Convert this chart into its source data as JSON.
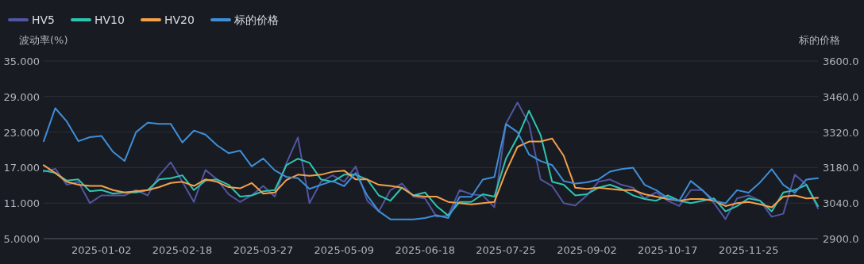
{
  "chart_data": {
    "type": "line",
    "ylabel": "波动率(%)",
    "y2label": "标的价格",
    "categories": [
      null,
      null,
      null,
      null,
      null,
      "2025-01-02",
      null,
      null,
      null,
      null,
      null,
      null,
      "2025-02-18",
      null,
      null,
      null,
      null,
      null,
      null,
      "2025-03-27",
      null,
      null,
      null,
      null,
      null,
      null,
      "2025-05-09",
      null,
      null,
      null,
      null,
      null,
      null,
      "2025-06-18",
      null,
      null,
      null,
      null,
      null,
      null,
      "2025-07-25",
      null,
      null,
      null,
      null,
      null,
      null,
      "2025-09-02",
      null,
      null,
      null,
      null,
      null,
      null,
      "2025-10-17",
      null,
      null,
      null,
      null,
      null,
      null,
      "2025-11-25",
      null,
      null,
      null,
      null,
      null,
      null
    ],
    "ylim": [
      5,
      35
    ],
    "yticks": [
      {
        "value": 5,
        "label": "5.0000"
      },
      {
        "value": 11,
        "label": "11.000"
      },
      {
        "value": 17,
        "label": "17.000"
      },
      {
        "value": 23,
        "label": "23.000"
      },
      {
        "value": 29,
        "label": "29.000"
      },
      {
        "value": 35,
        "label": "35.000"
      }
    ],
    "y2lim": [
      2900,
      3600
    ],
    "y2ticks": [
      {
        "value": 2900,
        "label": "2900.0"
      },
      {
        "value": 3040,
        "label": "3040.0"
      },
      {
        "value": 3180,
        "label": "3180.0"
      },
      {
        "value": 3320,
        "label": "3320.0"
      },
      {
        "value": 3460,
        "label": "3460.0"
      },
      {
        "value": 3600,
        "label": "3600.0"
      }
    ],
    "grid": "y",
    "legend": "top left",
    "marker": "none",
    "line_style": "solid",
    "series": [
      {
        "name": "HV5",
        "color": "#5156a3",
        "values": [
          16.3,
          16.8,
          14.1,
          14.6,
          11.0,
          12.3,
          12.3,
          12.3,
          13.2,
          12.3,
          15.7,
          17.9,
          14.6,
          11.2,
          16.6,
          15.0,
          12.5,
          11.2,
          12.3,
          13.9,
          12.1,
          17.7,
          22.1,
          11.0,
          14.6,
          15.7,
          14.6,
          17.2,
          11.4,
          9.6,
          13.2,
          14.3,
          12.1,
          11.8,
          8.7,
          8.9,
          13.2,
          12.5,
          12.3,
          10.3,
          24.4,
          28.0,
          24.4,
          15.0,
          13.9,
          11.0,
          10.6,
          12.3,
          14.6,
          15.0,
          14.1,
          13.6,
          11.8,
          12.8,
          11.4,
          10.5,
          13.2,
          13.2,
          11.0,
          8.3,
          11.8,
          12.3,
          11.4,
          8.7,
          9.2,
          15.8,
          14.1,
          10.1
        ]
      },
      {
        "name": "HV10",
        "color": "#2ec4b0",
        "values": [
          16.5,
          16.1,
          14.8,
          15.0,
          13.0,
          13.2,
          12.6,
          12.8,
          12.8,
          13.2,
          15.0,
          15.2,
          15.7,
          13.2,
          14.8,
          15.0,
          14.1,
          12.1,
          12.3,
          13.0,
          13.2,
          17.4,
          18.5,
          17.8,
          15.0,
          14.6,
          15.8,
          15.8,
          15.0,
          12.3,
          11.4,
          13.6,
          12.3,
          12.8,
          10.5,
          8.9,
          11.2,
          11.2,
          12.5,
          12.1,
          18.5,
          22.1,
          26.6,
          22.5,
          14.6,
          14.1,
          12.3,
          12.5,
          13.6,
          14.1,
          13.4,
          12.3,
          11.7,
          11.4,
          12.3,
          11.4,
          11.0,
          11.4,
          11.8,
          9.6,
          10.5,
          11.8,
          11.4,
          9.6,
          12.8,
          13.2,
          14.1,
          10.5
        ]
      },
      {
        "name": "HV20",
        "color": "#f5a04a",
        "values": [
          17.4,
          16.1,
          14.6,
          14.1,
          13.9,
          13.9,
          13.2,
          12.8,
          13.0,
          13.2,
          13.7,
          14.4,
          14.6,
          13.9,
          15.0,
          14.6,
          13.7,
          13.5,
          14.4,
          12.6,
          12.8,
          14.9,
          15.8,
          15.6,
          15.8,
          16.3,
          16.5,
          15.0,
          15.0,
          14.1,
          13.9,
          13.6,
          12.3,
          12.1,
          12.1,
          11.2,
          11.0,
          10.8,
          11.0,
          11.2,
          16.3,
          20.5,
          21.4,
          21.4,
          21.9,
          19.0,
          13.6,
          13.4,
          13.6,
          13.4,
          13.2,
          13.2,
          12.5,
          12.1,
          11.7,
          11.4,
          11.7,
          11.7,
          11.4,
          10.5,
          11.0,
          11.2,
          10.8,
          10.3,
          12.1,
          12.3,
          11.8,
          11.9
        ]
      },
      {
        "name": "标的价格",
        "color": "#3e8ed8",
        "axis": "y2",
        "values": [
          3284,
          3414,
          3362,
          3284,
          3300,
          3305,
          3242,
          3206,
          3320,
          3357,
          3352,
          3352,
          3279,
          3326,
          3310,
          3268,
          3237,
          3247,
          3185,
          3216,
          3169,
          3143,
          3138,
          3096,
          3112,
          3127,
          3107,
          3159,
          3070,
          3008,
          2976,
          2976,
          2976,
          2981,
          2992,
          2981,
          3065,
          3065,
          3133,
          3143,
          3352,
          3320,
          3232,
          3206,
          3190,
          3127,
          3117,
          3122,
          3133,
          3164,
          3174,
          3180,
          3112,
          3091,
          3060,
          3049,
          3127,
          3091,
          3049,
          3039,
          3091,
          3081,
          3122,
          3174,
          3112,
          3081,
          3133,
          3138
        ]
      }
    ]
  }
}
